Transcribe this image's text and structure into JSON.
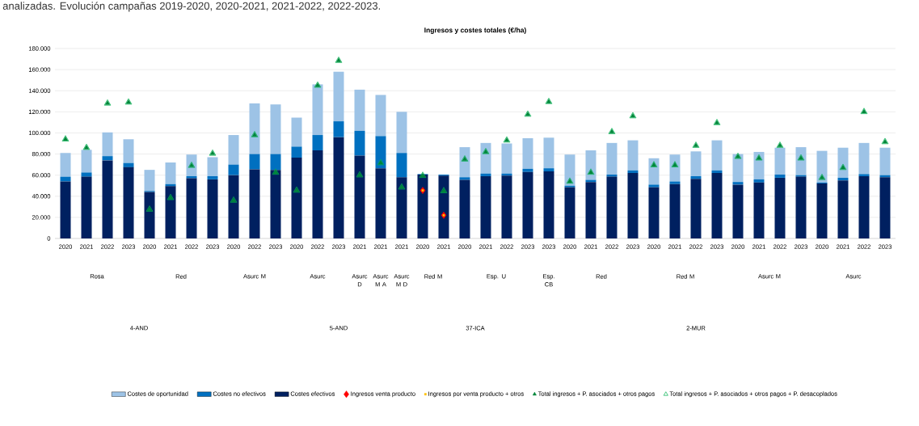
{
  "chart_data": {
    "type": "bar",
    "title": "Ingresos y costes totales (€/ha)",
    "categories": [
      "2020",
      "2021",
      "2022",
      "2023",
      "2020",
      "2021",
      "2022",
      "2023",
      "2020",
      "2022",
      "2023",
      "2020",
      "2022",
      "2023",
      "2021",
      "2021",
      "2021",
      "2020",
      "2021",
      "2020",
      "2021",
      "2022",
      "2023",
      "2023",
      "2020",
      "2021",
      "2022",
      "2023",
      "2020",
      "2021",
      "2022",
      "2023",
      "2020",
      "2021",
      "2022",
      "2023",
      "2020",
      "2021",
      "2022",
      "2023"
    ],
    "stacked": true,
    "series": [
      {
        "name": "Costes efectivos",
        "type": "bar",
        "color": "#002060",
        "values": [
          54000,
          58500,
          74000,
          67500,
          44000,
          49500,
          57000,
          56000,
          60000,
          65500,
          65000,
          76500,
          83500,
          96000,
          78500,
          66500,
          58000,
          60500,
          59500,
          55500,
          59000,
          59500,
          63000,
          63500,
          48500,
          53500,
          58500,
          62000,
          48500,
          51500,
          56500,
          62000,
          51000,
          53000,
          57500,
          58500,
          52000,
          55000,
          59000,
          58000
        ]
      },
      {
        "name": "Costes no efectivos",
        "type": "bar",
        "color": "#0070c0",
        "values": [
          4500,
          4000,
          4000,
          4000,
          1000,
          2000,
          2000,
          3000,
          10000,
          14500,
          15000,
          10500,
          14500,
          15000,
          23500,
          30500,
          23000,
          500,
          1000,
          2500,
          2500,
          2000,
          3000,
          3000,
          1500,
          2000,
          2000,
          2500,
          2500,
          2500,
          2500,
          2500,
          2500,
          3000,
          3000,
          1500,
          1000,
          2500,
          2000,
          2000
        ]
      },
      {
        "name": "Costes de oportunidad",
        "type": "bar",
        "color": "#9dc3e6",
        "values": [
          22500,
          21500,
          22500,
          22500,
          20000,
          20500,
          20500,
          18000,
          28000,
          48000,
          47000,
          27500,
          48000,
          47000,
          39000,
          39000,
          39000,
          null,
          null,
          28500,
          29000,
          28500,
          29000,
          29000,
          29500,
          28000,
          30000,
          28500,
          25000,
          25500,
          23500,
          28500,
          26500,
          26000,
          25500,
          26500,
          30000,
          28500,
          29500,
          26000
        ]
      },
      {
        "name": "Ingresos venta producto",
        "type": "scatter",
        "marker": "diamond",
        "color": "#ff0000",
        "values": [
          null,
          null,
          null,
          null,
          null,
          null,
          null,
          null,
          null,
          null,
          null,
          null,
          null,
          null,
          null,
          null,
          null,
          45500,
          22000,
          null,
          null,
          null,
          null,
          null,
          null,
          null,
          null,
          null,
          null,
          null,
          null,
          null,
          null,
          null,
          null,
          null,
          null,
          null,
          null,
          null
        ]
      },
      {
        "name": "Ingresos por venta producto + otros",
        "type": "scatter",
        "marker": "square",
        "color": "#ffc000",
        "values": [
          null,
          null,
          null,
          null,
          null,
          null,
          null,
          null,
          null,
          null,
          null,
          null,
          null,
          null,
          null,
          null,
          null,
          45500,
          22000,
          null,
          null,
          null,
          null,
          null,
          null,
          null,
          null,
          null,
          null,
          null,
          null,
          null,
          null,
          null,
          null,
          null,
          null,
          null,
          null,
          null
        ]
      },
      {
        "name": "Total ingresos + P. asociados + otros pagos",
        "type": "scatter",
        "marker": "triangle",
        "color": "#00873a",
        "values": [
          94000,
          86000,
          128000,
          129000,
          27500,
          38500,
          69000,
          80500,
          36000,
          98000,
          62500,
          45500,
          145000,
          168500,
          60000,
          71500,
          48500,
          59500,
          45000,
          75000,
          82000,
          93000,
          117500,
          129500,
          54000,
          62500,
          101000,
          116000,
          69500,
          69500,
          88000,
          109500,
          77500,
          76000,
          88000,
          76000,
          57500,
          67000,
          120000,
          91500
        ]
      },
      {
        "name": "Total ingresos + P. asociados + otros pagos + P. desacoplados",
        "type": "scatter",
        "marker": "triangle-open",
        "color": "#00b050",
        "values": [
          94000,
          86000,
          128000,
          129000,
          27500,
          38500,
          69000,
          80500,
          36000,
          98000,
          62500,
          45500,
          145000,
          168500,
          60000,
          71500,
          48500,
          59500,
          45000,
          75000,
          82000,
          93000,
          117500,
          129500,
          54000,
          62500,
          101000,
          116000,
          69500,
          69500,
          88000,
          109500,
          77500,
          76000,
          88000,
          76000,
          57500,
          67000,
          120000,
          91500
        ]
      }
    ],
    "ylim": [
      0,
      180000
    ],
    "yticks": [
      0,
      {
        "value": 20000,
        "label": "20.000"
      },
      {
        "value": 40000,
        "label": "40.000"
      },
      {
        "value": 60000,
        "label": "60.000"
      },
      {
        "value": 80000,
        "label": "80.000"
      },
      {
        "value": 100000,
        "label": "100.000"
      },
      {
        "value": 120000,
        "label": "120.000"
      },
      {
        "value": 140000,
        "label": "140.000"
      },
      {
        "value": 160000,
        "label": "160.000"
      },
      {
        "value": 180000,
        "label": "180.000"
      }
    ],
    "grid": "y",
    "legend": "bottom",
    "annotations": [
      "analizadas. Evolución campañas 2019-2020, 2020-2021, 2021-2022, 2022-2023.",
      "Rosa",
      "Red",
      "Asurc M",
      "Asurc",
      "Asurc D",
      "Asurc M A",
      "Asurc M D",
      "Red M",
      "Esp. U",
      "Esp. CB",
      "Red",
      "Red M",
      "Asurc M",
      "Asurc",
      "4-AND",
      "5-AND",
      "37-ICA",
      "2-MUR"
    ]
  }
}
